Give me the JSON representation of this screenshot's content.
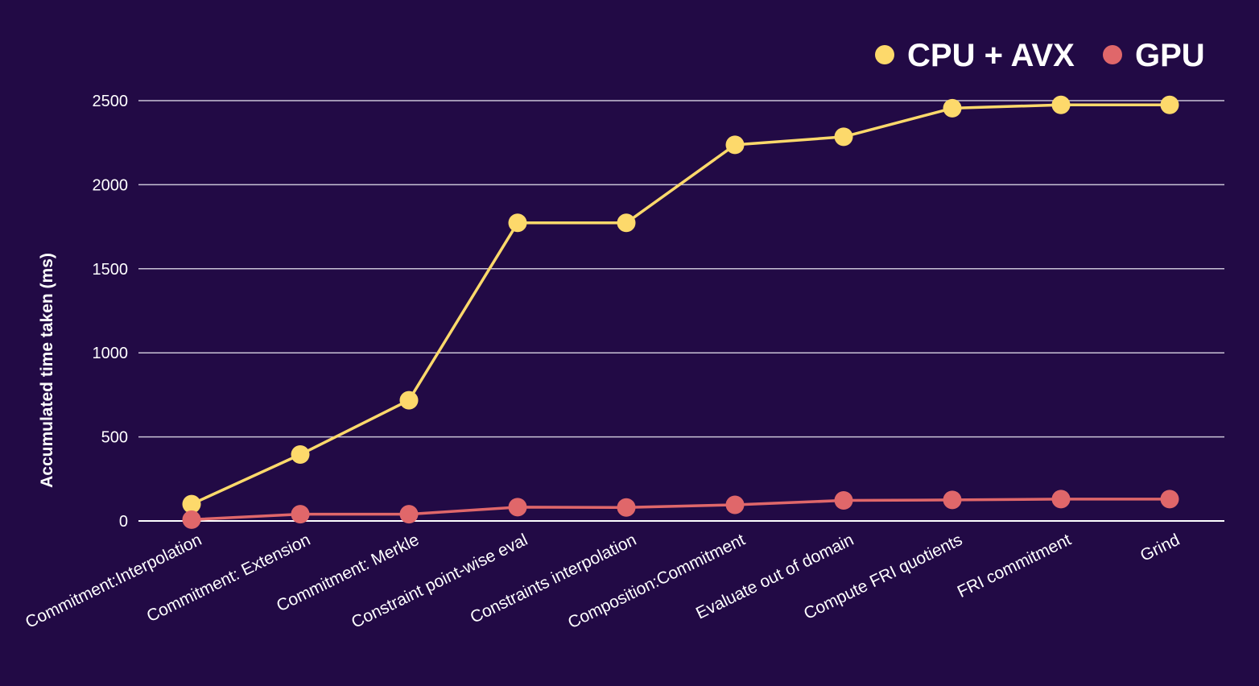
{
  "chart_data": {
    "type": "line",
    "title": "",
    "xlabel": "",
    "ylabel": "Accumulated time taken (ms)",
    "ylim": [
      0,
      2500
    ],
    "yticks": [
      0,
      500,
      1000,
      1500,
      2000,
      2500
    ],
    "grid": true,
    "legend_position": "top-right",
    "categories": [
      "Commitment:Interpolation",
      "Commitment: Extension",
      "Commitment: Merkle",
      "Constraint point-wise eval",
      "Constraints interpolation",
      "Composition:Commitment",
      "Evaluate out of domain",
      "Compute FRI quotients",
      "FRI commitment",
      "Grind"
    ],
    "series": [
      {
        "name": "CPU + AVX",
        "color": "#fdd96b",
        "values": [
          100,
          395,
          718,
          1773,
          1773,
          2237,
          2285,
          2455,
          2475,
          2475
        ]
      },
      {
        "name": "GPU",
        "color": "#e0676a",
        "values": [
          8,
          40,
          40,
          82,
          80,
          96,
          122,
          125,
          130,
          130
        ]
      }
    ]
  }
}
